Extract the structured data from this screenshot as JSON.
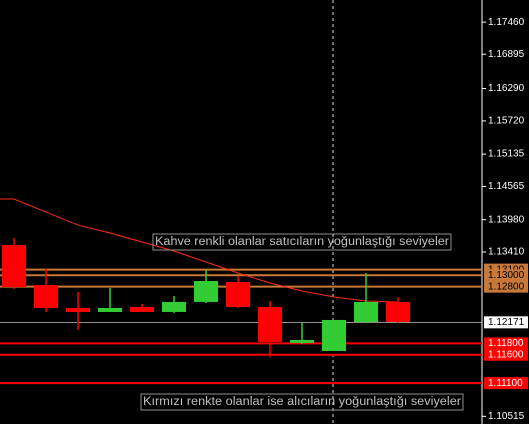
{
  "chart_data": {
    "type": "candlestick",
    "ylim": [
      1.1038,
      1.1785
    ],
    "yticks": [
      {
        "value": 1.1746,
        "label": "1.17460"
      },
      1.16895,
      {
        "value": 1.1629,
        "label": "1.16290"
      },
      {
        "value": 1.1572,
        "label": "1.15720"
      },
      1.15135,
      1.14565,
      {
        "value": 1.1398,
        "label": "1.13980"
      },
      {
        "value": 1.1341,
        "label": "1.13410"
      },
      1.10515
    ],
    "up_color": "#32cd32",
    "down_color": "#ff0000",
    "open": [
      1.13533,
      1.12829,
      1.12424,
      1.12354,
      1.12442,
      1.12354,
      1.1253,
      1.12882,
      1.12442,
      1.11808,
      1.11667,
      1.12177,
      1.1253
    ],
    "high": [
      1.13657,
      1.13111,
      1.12706,
      1.12776,
      1.12494,
      1.12635,
      1.13093,
      1.12987,
      1.12547,
      1.1216,
      1.12213,
      1.1304,
      1.12618
    ],
    "low": [
      1.12758,
      1.12354,
      1.12037,
      1.12354,
      1.12354,
      1.12336,
      1.12512,
      1.12424,
      1.11561,
      1.1179,
      1.11667,
      1.1216,
      1.1216
    ],
    "close": [
      1.12794,
      1.12424,
      1.12354,
      1.12424,
      1.12354,
      1.1253,
      1.12899,
      1.12442,
      1.11825,
      1.1186,
      1.12213,
      1.1253,
      1.12177
    ],
    "ma": {
      "color": "#ff2a1a",
      "values": [
        1.14343,
        1.14114,
        1.13885,
        1.13745,
        1.13586,
        1.13428,
        1.13234,
        1.1304,
        1.12864,
        1.12723,
        1.12618,
        1.12547,
        1.1253
      ]
    },
    "levels": [
      {
        "value": 1.131,
        "label": "1.13100",
        "color": "#c87838"
      },
      {
        "value": 1.13,
        "label": "1.13000",
        "color": "#c87838"
      },
      {
        "value": 1.128,
        "label": "1.12800",
        "color": "#c87838"
      },
      {
        "value": 1.118,
        "label": "1.11800",
        "color": "#ff0000"
      },
      {
        "value": 1.116,
        "label": "1.11600",
        "color": "#ff0000"
      },
      {
        "value": 1.111,
        "label": "1.11100",
        "color": "#ff0000"
      }
    ],
    "current_price": {
      "value": 1.12171,
      "color": "#c0c0c0"
    },
    "annotations": [
      "Kahve renkli olanlar satıcıların yoğunlaştığı seviyeler",
      "Kırmızı renkte olanlar ise alıcıların yoğunlaştığı seviyeler"
    ]
  }
}
